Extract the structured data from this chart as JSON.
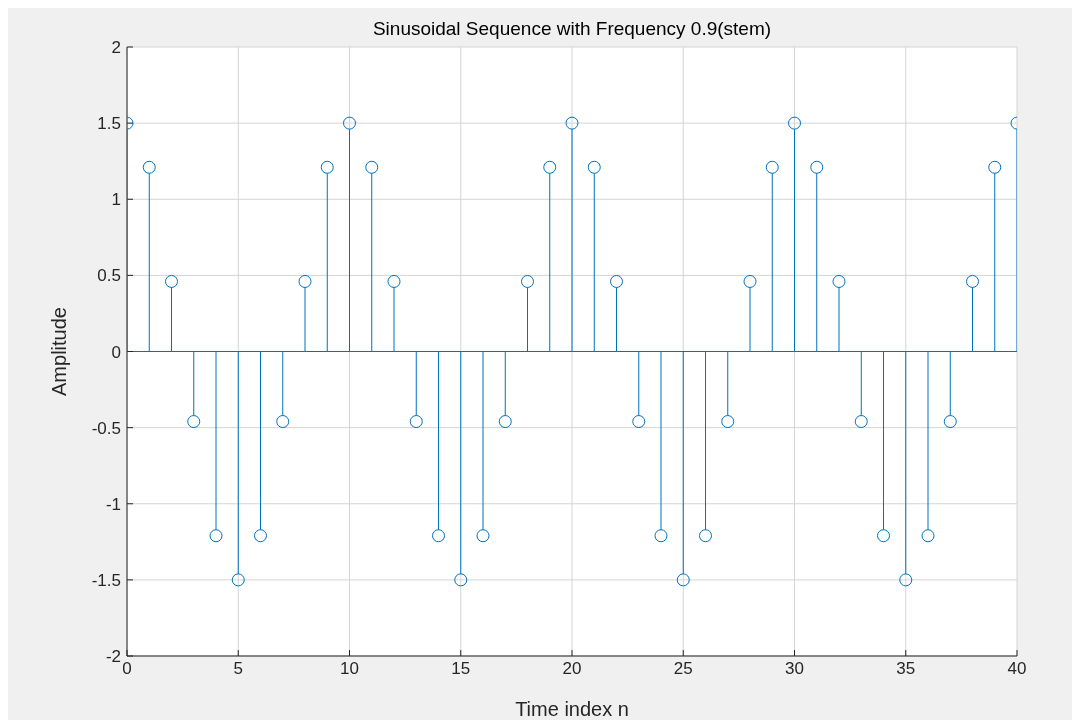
{
  "chart_data": {
    "type": "lollipop",
    "title": "Sinusoidal Sequence with Frequency 0.9(stem)",
    "xlabel": "Time index n",
    "ylabel": "Amplitude",
    "x": [
      0,
      1,
      2,
      3,
      4,
      5,
      6,
      7,
      8,
      9,
      10,
      11,
      12,
      13,
      14,
      15,
      16,
      17,
      18,
      19,
      20,
      21,
      22,
      23,
      24,
      25,
      26,
      27,
      28,
      29,
      30,
      31,
      32,
      33,
      34,
      35,
      36,
      37,
      38,
      39,
      40
    ],
    "series": [
      {
        "color": "#0072bd",
        "values": [
          1.5,
          1.21,
          0.46,
          -0.46,
          -1.21,
          -1.5,
          -1.21,
          -0.46,
          0.46,
          1.21,
          1.5,
          1.21,
          0.46,
          -0.46,
          -1.21,
          -1.5,
          -1.21,
          -0.46,
          0.46,
          1.21,
          1.5,
          1.21,
          0.46,
          -0.46,
          -1.21,
          -1.5,
          -1.21,
          -0.46,
          0.46,
          1.21,
          1.5,
          1.21,
          0.46,
          -0.46,
          -1.21,
          -1.5,
          -1.21,
          -0.46,
          0.46,
          1.21,
          1.5
        ]
      }
    ],
    "xlim": [
      0,
      40
    ],
    "xticks": [
      0,
      5,
      10,
      15,
      20,
      25,
      30,
      35,
      40
    ],
    "ylim": [
      -2,
      2
    ],
    "yticks": [
      -2,
      -1.5,
      -1,
      -0.5,
      0,
      0.5,
      1,
      1.5,
      2
    ],
    "ref_lines": [
      {
        "axis": "y",
        "value": 0,
        "color": "#0072bd"
      }
    ],
    "grid": true,
    "marker": "circle"
  }
}
